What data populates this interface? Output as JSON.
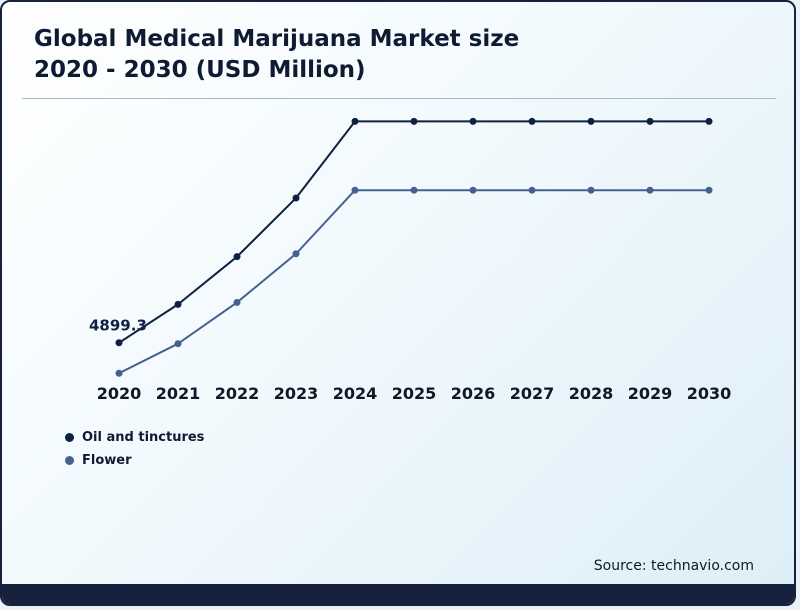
{
  "title": {
    "line1": "Global Medical Marijuana Market size",
    "line2": "2020 - 2030 (USD Million)"
  },
  "source_label": "Source: technavio.com",
  "colors": {
    "frame": "#16213e",
    "oil": "#0d2240",
    "flower": "#46618f",
    "title_text": "#0e1b33",
    "axis_text": "#101828"
  },
  "chart_data": {
    "type": "line",
    "title": "Global Medical Marijuana Market size 2020 - 2030 (USD Million)",
    "x": [
      2020,
      2021,
      2022,
      2023,
      2024,
      2025,
      2026,
      2027,
      2028,
      2029,
      2030
    ],
    "series": [
      {
        "name": "Oil and tinctures",
        "color": "#0d2240",
        "values": [
          4899.3,
          5880,
          7100,
          8600,
          10560,
          10560,
          10560,
          10560,
          10560,
          10560,
          10560
        ]
      },
      {
        "name": "Flower",
        "color": "#46618f",
        "values": [
          4120,
          4875,
          5930,
          7175,
          8800,
          8800,
          8800,
          8800,
          8800,
          8800,
          8800
        ]
      }
    ],
    "annotations": [
      {
        "text": "4899.3",
        "series_index": 0,
        "x_index": 0
      }
    ],
    "xlabel": "",
    "ylabel": "",
    "ylim": [
      4100,
      10800
    ],
    "grid": false,
    "legend_position": "bottom-left"
  }
}
